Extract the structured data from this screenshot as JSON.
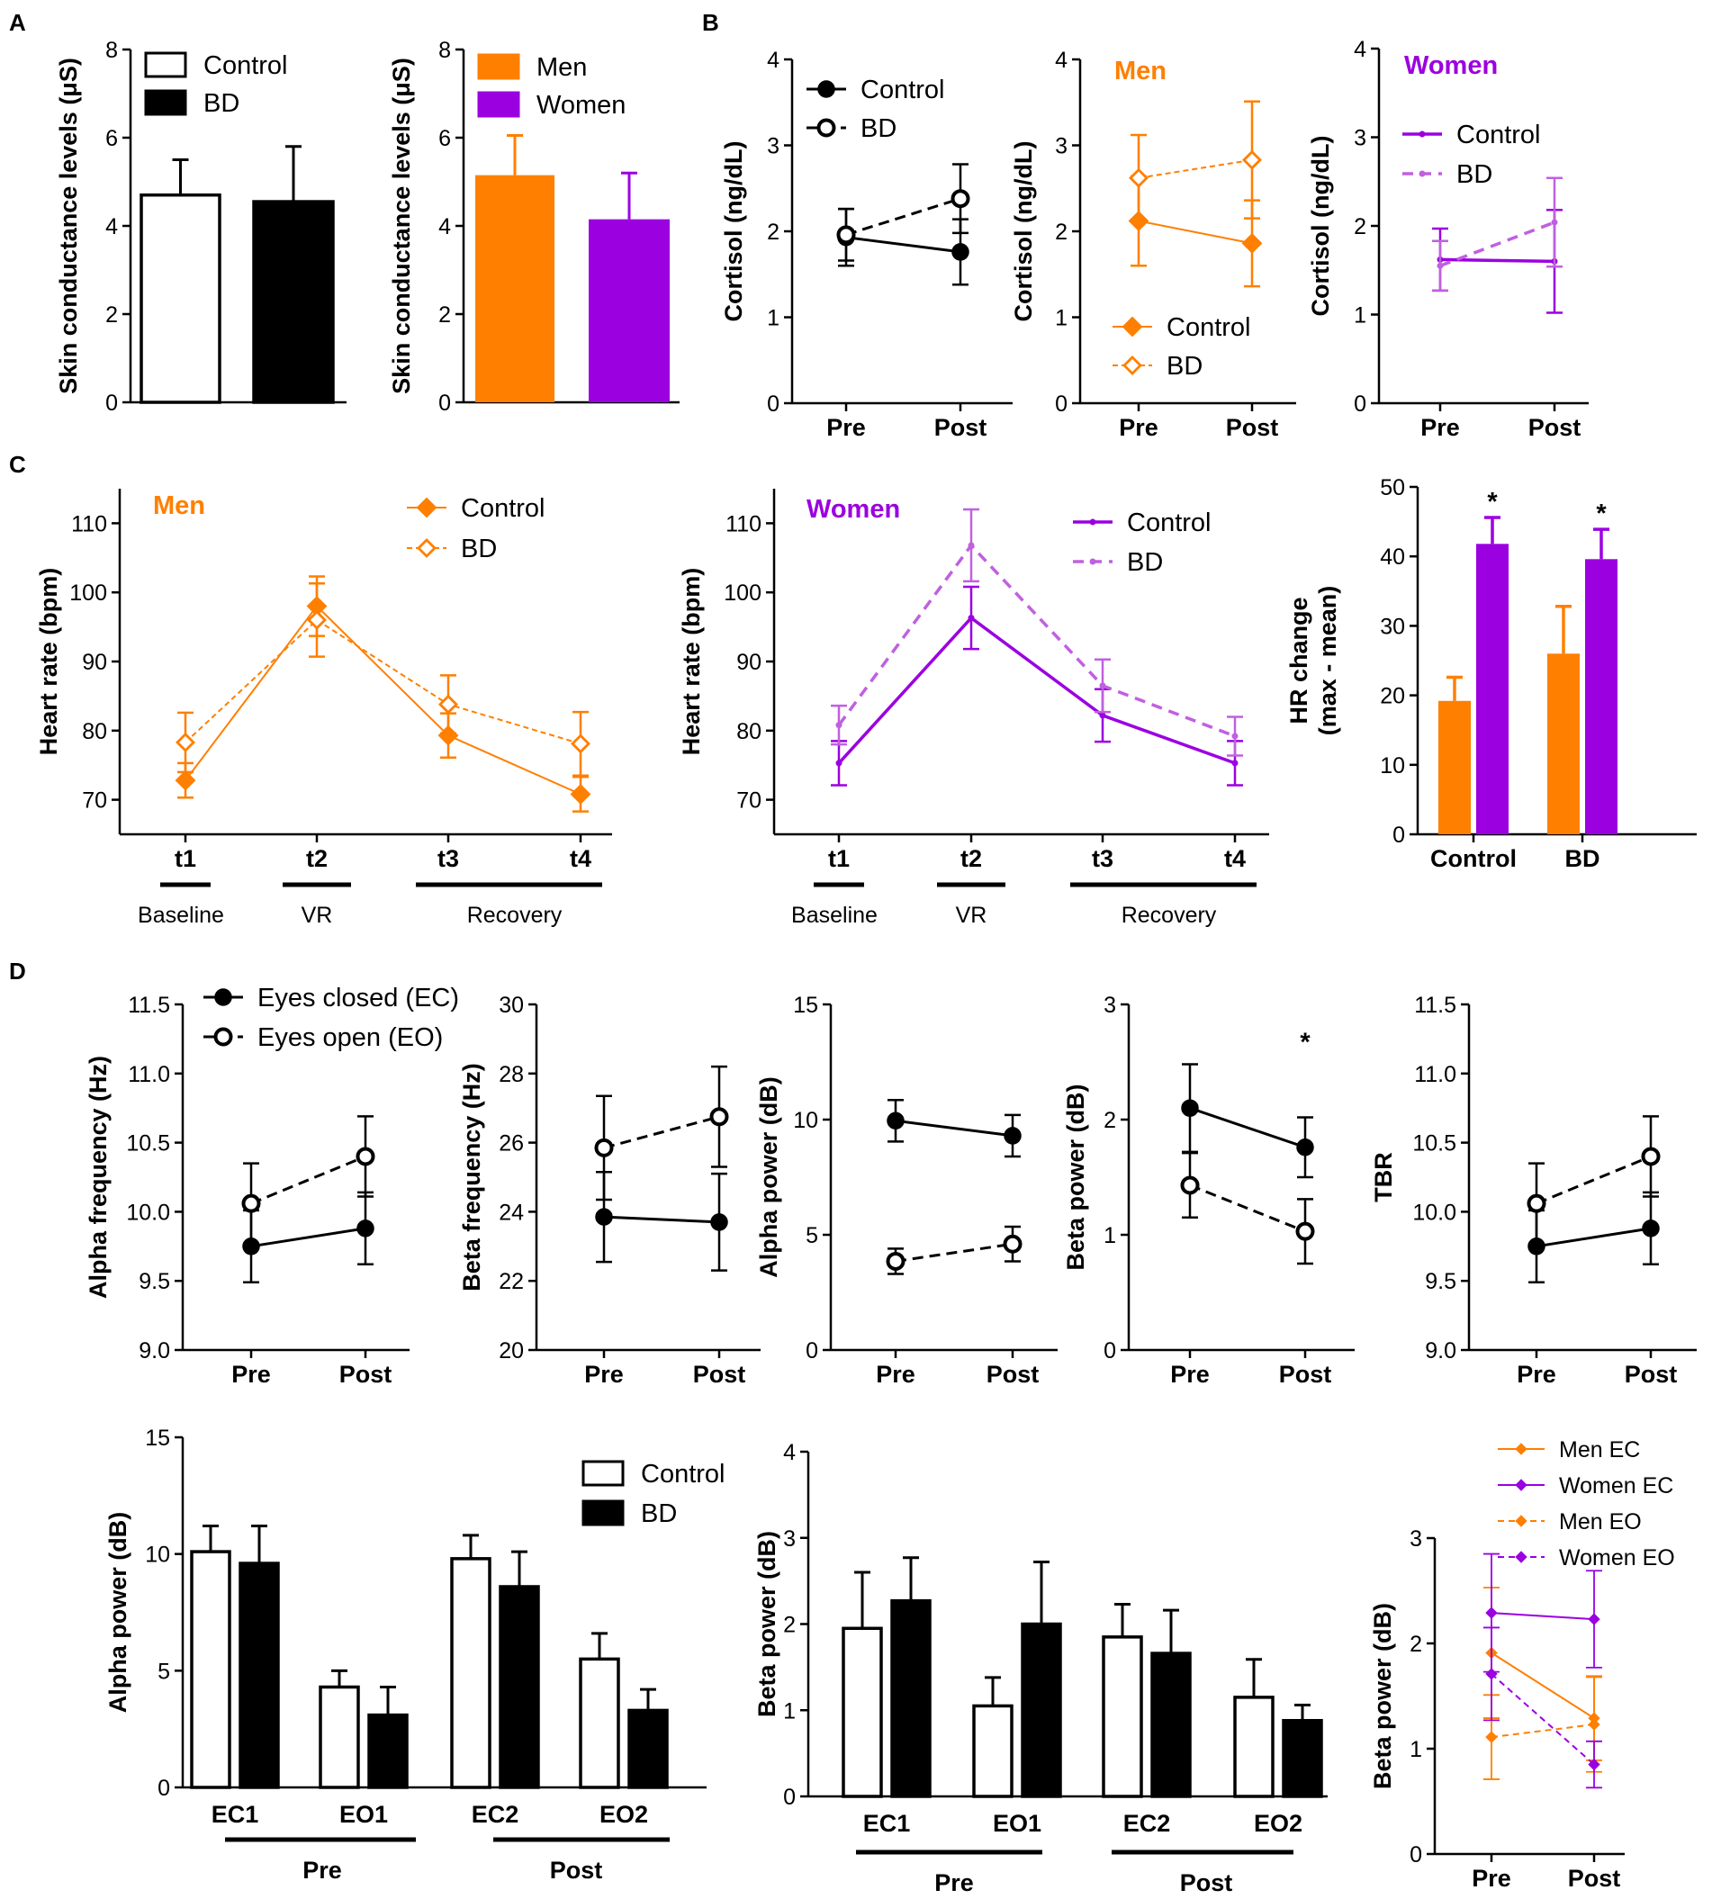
{
  "colors": {
    "men": "#ff7f00",
    "women": "#9b00e0",
    "women_light": "#c060e0",
    "black": "#000000",
    "white": "#ffffff"
  },
  "panels": {
    "A": "A",
    "B": "B",
    "C": "C",
    "D": "D"
  },
  "chart_data": [
    {
      "id": "a1",
      "type": "bar",
      "panel": "A",
      "ylabel": "Skin conductance levels (μS)",
      "ylim": [
        0,
        8
      ],
      "yticks": [
        "0",
        "2",
        "4",
        "6",
        "8"
      ],
      "legend": [
        "Control",
        "BD"
      ],
      "categories": [
        "Control",
        "BD"
      ],
      "values": [
        4.7,
        4.55
      ],
      "errors": [
        0.8,
        1.25
      ]
    },
    {
      "id": "a2",
      "type": "bar",
      "panel": "A",
      "ylabel": "Skin conductance levels (μS)",
      "ylim": [
        0,
        8
      ],
      "yticks": [
        "0",
        "2",
        "4",
        "6",
        "8"
      ],
      "legend": [
        "Men",
        "Women"
      ],
      "categories": [
        "Men",
        "Women"
      ],
      "values": [
        5.15,
        4.15
      ],
      "errors": [
        0.9,
        1.05
      ]
    },
    {
      "id": "b1",
      "type": "line",
      "panel": "B",
      "ylabel": "Cortisol (ng/dL)",
      "ylim": [
        0,
        4
      ],
      "yticks": [
        "0",
        "1",
        "2",
        "3",
        "4"
      ],
      "categories": [
        "Pre",
        "Post"
      ],
      "series": [
        {
          "name": "Control",
          "values": [
            1.93,
            1.76
          ],
          "errors": [
            0.33,
            0.38
          ]
        },
        {
          "name": "BD",
          "values": [
            1.96,
            2.38
          ],
          "errors": [
            0.3,
            0.4
          ]
        }
      ]
    },
    {
      "id": "b2",
      "type": "line",
      "panel": "B",
      "title": "Men",
      "ylabel": "Cortisol (ng/dL)",
      "ylim": [
        0,
        4
      ],
      "yticks": [
        "0",
        "1",
        "2",
        "3",
        "4"
      ],
      "categories": [
        "Pre",
        "Post"
      ],
      "series": [
        {
          "name": "Control",
          "values": [
            2.12,
            1.86
          ],
          "errors": [
            0.52,
            0.5
          ]
        },
        {
          "name": "BD",
          "values": [
            2.62,
            2.83
          ],
          "errors": [
            0.5,
            0.68
          ]
        }
      ]
    },
    {
      "id": "b3",
      "type": "line",
      "panel": "B",
      "title": "Women",
      "ylabel": "Cortisol (ng/dL)",
      "ylim": [
        0,
        4
      ],
      "yticks": [
        "0",
        "1",
        "2",
        "3",
        "4"
      ],
      "categories": [
        "Pre",
        "Post"
      ],
      "series": [
        {
          "name": "Control",
          "values": [
            1.62,
            1.6
          ],
          "errors": [
            0.35,
            0.58
          ]
        },
        {
          "name": "BD",
          "values": [
            1.55,
            2.04
          ],
          "errors": [
            0.28,
            0.5
          ]
        }
      ]
    },
    {
      "id": "c1",
      "type": "line",
      "panel": "C",
      "title": "Men",
      "ylabel": "Heart rate (bpm)",
      "ylim": [
        65,
        115
      ],
      "yticks": [
        "70",
        "80",
        "90",
        "100",
        "110"
      ],
      "categories": [
        "t1",
        "t2",
        "t3",
        "t4"
      ],
      "phases": [
        "Baseline",
        "VR",
        "Recovery"
      ],
      "series": [
        {
          "name": "Control",
          "values": [
            72.8,
            98,
            79.3,
            70.8
          ],
          "errors": [
            2.5,
            4.3,
            3.2,
            2.5
          ]
        },
        {
          "name": "BD",
          "values": [
            78.3,
            96,
            83.8,
            78.1
          ],
          "errors": [
            4.3,
            5.3,
            4.2,
            4.6
          ]
        }
      ]
    },
    {
      "id": "c2",
      "type": "line",
      "panel": "C",
      "title": "Women",
      "ylabel": "Heart rate (bpm)",
      "ylim": [
        65,
        115
      ],
      "yticks": [
        "70",
        "80",
        "90",
        "100",
        "110"
      ],
      "categories": [
        "t1",
        "t2",
        "t3",
        "t4"
      ],
      "phases": [
        "Baseline",
        "VR",
        "Recovery"
      ],
      "series": [
        {
          "name": "Control",
          "values": [
            75.3,
            96.3,
            82.2,
            75.3
          ],
          "errors": [
            3.2,
            4.5,
            3.8,
            3.2
          ]
        },
        {
          "name": "BD",
          "values": [
            80.8,
            106.8,
            86.5,
            79.2
          ],
          "errors": [
            2.8,
            5.2,
            3.8,
            2.8
          ]
        }
      ]
    },
    {
      "id": "c3",
      "type": "bar",
      "panel": "C",
      "ylabel": "HR change (max - mean)",
      "ylim": [
        0,
        50
      ],
      "yticks": [
        "0",
        "10",
        "20",
        "30",
        "40",
        "50"
      ],
      "categories": [
        "Control",
        "BD"
      ],
      "series": [
        {
          "name": "Men",
          "values": [
            19.2,
            26
          ],
          "errors": [
            3.4,
            6.8
          ]
        },
        {
          "name": "Women",
          "values": [
            41.8,
            39.6
          ],
          "errors": [
            3.8,
            4.3
          ]
        }
      ],
      "annotations": [
        "*",
        "*"
      ]
    },
    {
      "id": "d1",
      "type": "line",
      "panel": "D",
      "ylabel": "Alpha frequency (Hz)",
      "ylim": [
        9,
        11.5
      ],
      "yticks": [
        "9.0",
        "9.5",
        "10.0",
        "10.5",
        "11.0",
        "11.5"
      ],
      "categories": [
        "Pre",
        "Post"
      ],
      "series": [
        {
          "name": "Eyes closed (EC)",
          "values": [
            9.75,
            9.88
          ],
          "errors": [
            0.26,
            0.26
          ]
        },
        {
          "name": "Eyes open (EO)",
          "values": [
            10.06,
            10.4
          ],
          "errors": [
            0.29,
            0.29
          ]
        }
      ]
    },
    {
      "id": "d2",
      "type": "line",
      "panel": "D",
      "ylabel": "Beta frequency (Hz)",
      "ylim": [
        20,
        30
      ],
      "yticks": [
        "20",
        "22",
        "24",
        "26",
        "28",
        "30"
      ],
      "categories": [
        "Pre",
        "Post"
      ],
      "series": [
        {
          "name": "Eyes closed (EC)",
          "values": [
            23.85,
            23.7
          ],
          "errors": [
            1.3,
            1.4
          ]
        },
        {
          "name": "Eyes open (EO)",
          "values": [
            25.85,
            26.75
          ],
          "errors": [
            1.5,
            1.45
          ]
        }
      ]
    },
    {
      "id": "d3",
      "type": "line",
      "panel": "D",
      "ylabel": "Alpha power (dB)",
      "ylim": [
        0,
        15
      ],
      "yticks": [
        "0",
        "5",
        "10",
        "15"
      ],
      "categories": [
        "Pre",
        "Post"
      ],
      "series": [
        {
          "name": "Eyes closed (EC)",
          "values": [
            9.95,
            9.3
          ],
          "errors": [
            0.9,
            0.9
          ]
        },
        {
          "name": "Eyes open (EO)",
          "values": [
            3.85,
            4.6
          ],
          "errors": [
            0.55,
            0.75
          ]
        }
      ]
    },
    {
      "id": "d4",
      "type": "line",
      "panel": "D",
      "ylabel": "Beta power (dB)",
      "ylim": [
        0,
        3
      ],
      "yticks": [
        "0",
        "1",
        "2",
        "3"
      ],
      "categories": [
        "Pre",
        "Post"
      ],
      "series": [
        {
          "name": "Eyes closed (EC)",
          "values": [
            2.1,
            1.76
          ],
          "errors": [
            0.38,
            0.26
          ]
        },
        {
          "name": "Eyes open (EO)",
          "values": [
            1.43,
            1.03
          ],
          "errors": [
            0.28,
            0.28
          ]
        }
      ],
      "annotations": [
        "*"
      ]
    },
    {
      "id": "d5",
      "type": "line",
      "panel": "D",
      "ylabel": "TBR",
      "ylim": [
        9,
        11.5
      ],
      "yticks": [
        "9.0",
        "9.5",
        "10.0",
        "10.5",
        "11.0",
        "11.5"
      ],
      "categories": [
        "Pre",
        "Post"
      ],
      "series": [
        {
          "name": "Eyes closed (EC)",
          "values": [
            9.75,
            9.88
          ],
          "errors": [
            0.26,
            0.26
          ]
        },
        {
          "name": "Eyes open (EO)",
          "values": [
            10.06,
            10.4
          ],
          "errors": [
            0.29,
            0.29
          ]
        }
      ]
    },
    {
      "id": "d6",
      "type": "bar",
      "panel": "D",
      "ylabel": "Alpha power (dB)",
      "ylim": [
        0,
        15
      ],
      "yticks": [
        "0",
        "5",
        "10",
        "15"
      ],
      "categories": [
        "EC1",
        "EO1",
        "EC2",
        "EO2"
      ],
      "groups": [
        "Pre",
        "Post"
      ],
      "series": [
        {
          "name": "Control",
          "values": [
            10.1,
            4.3,
            9.8,
            5.5
          ],
          "errors": [
            1.1,
            0.7,
            1.0,
            1.1
          ]
        },
        {
          "name": "BD",
          "values": [
            9.6,
            3.1,
            8.6,
            3.3
          ],
          "errors": [
            1.6,
            1.2,
            1.5,
            0.9
          ]
        }
      ]
    },
    {
      "id": "d7",
      "type": "bar",
      "panel": "D",
      "ylabel": "Beta power (dB)",
      "ylim": [
        0,
        4
      ],
      "yticks": [
        "0",
        "1",
        "2",
        "3",
        "4"
      ],
      "categories": [
        "EC1",
        "EO1",
        "EC2",
        "EO2"
      ],
      "groups": [
        "Pre",
        "Post"
      ],
      "series": [
        {
          "name": "Control",
          "values": [
            1.95,
            1.05,
            1.85,
            1.15
          ],
          "errors": [
            0.65,
            0.33,
            0.38,
            0.44
          ]
        },
        {
          "name": "BD",
          "values": [
            2.27,
            2.0,
            1.66,
            0.88
          ],
          "errors": [
            0.5,
            0.72,
            0.5,
            0.18
          ]
        }
      ]
    },
    {
      "id": "d8",
      "type": "line",
      "panel": "D",
      "ylabel": "Beta power (dB)",
      "ylim": [
        0,
        3
      ],
      "yticks": [
        "0",
        "1",
        "2",
        "3"
      ],
      "categories": [
        "Pre",
        "Post"
      ],
      "series": [
        {
          "name": "Men EC",
          "values": [
            1.91,
            1.29
          ],
          "errors": [
            0.62,
            0.4
          ]
        },
        {
          "name": "Women EC",
          "values": [
            2.29,
            2.23
          ],
          "errors": [
            0.56,
            0.46
          ]
        },
        {
          "name": "Men EO",
          "values": [
            1.11,
            1.23
          ],
          "errors": [
            0.4,
            0.45
          ]
        },
        {
          "name": "Women EO",
          "values": [
            1.71,
            0.85
          ],
          "errors": [
            0.44,
            0.22
          ]
        }
      ]
    }
  ]
}
